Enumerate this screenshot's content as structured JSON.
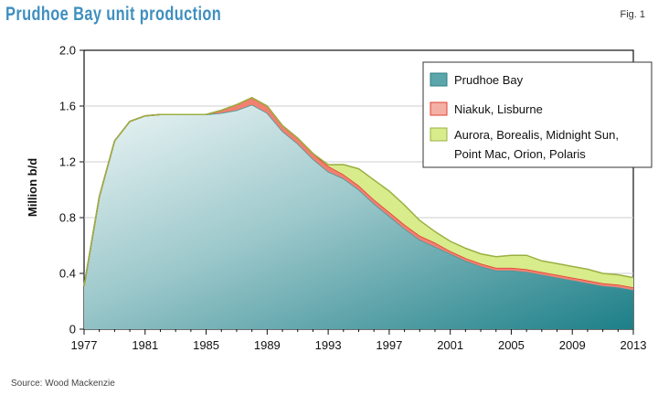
{
  "header": {
    "title": "Prudhoe Bay unit production",
    "fig": "Fig. 1"
  },
  "footer": {
    "source": "Source: Wood Mackenzie"
  },
  "chart_data": {
    "type": "area",
    "stacked": true,
    "title": "Prudhoe Bay unit production",
    "xlabel": "",
    "ylabel": "Million b/d",
    "xlim": [
      1977,
      2013
    ],
    "ylim": [
      0,
      2.0
    ],
    "x_ticks": [
      1977,
      1981,
      1985,
      1989,
      1993,
      1997,
      2001,
      2005,
      2009,
      2013
    ],
    "y_ticks": [
      {
        "value": 0,
        "label": "0"
      },
      {
        "value": 0.4,
        "label": "0.4"
      },
      {
        "value": 0.8,
        "label": "0.8"
      },
      {
        "value": 1.2,
        "label": "1.2"
      },
      {
        "value": 1.6,
        "label": "1.6"
      },
      {
        "value": 2.0,
        "label": "2.0"
      }
    ],
    "grid": "horizontal",
    "legend_position": "top-right",
    "x": [
      1977,
      1978,
      1979,
      1980,
      1981,
      1982,
      1983,
      1984,
      1985,
      1986,
      1987,
      1988,
      1989,
      1990,
      1991,
      1992,
      1993,
      1994,
      1995,
      1996,
      1997,
      1998,
      1999,
      2000,
      2001,
      2002,
      2003,
      2004,
      2005,
      2006,
      2007,
      2008,
      2009,
      2010,
      2011,
      2012,
      2013
    ],
    "series": [
      {
        "name": "Prudhoe Bay",
        "color": "#3f9097",
        "values": [
          0.31,
          0.95,
          1.35,
          1.49,
          1.53,
          1.54,
          1.54,
          1.54,
          1.54,
          1.55,
          1.57,
          1.61,
          1.55,
          1.42,
          1.33,
          1.22,
          1.13,
          1.08,
          1.0,
          0.9,
          0.81,
          0.72,
          0.64,
          0.59,
          0.54,
          0.49,
          0.45,
          0.42,
          0.42,
          0.41,
          0.39,
          0.37,
          0.35,
          0.33,
          0.31,
          0.3,
          0.28
        ]
      },
      {
        "name": "Niakuk, Lisburne",
        "color": "#f08070",
        "values": [
          0,
          0,
          0,
          0,
          0,
          0,
          0,
          0,
          0,
          0.02,
          0.04,
          0.05,
          0.05,
          0.04,
          0.04,
          0.04,
          0.04,
          0.03,
          0.03,
          0.03,
          0.03,
          0.03,
          0.03,
          0.03,
          0.02,
          0.02,
          0.02,
          0.02,
          0.02,
          0.02,
          0.02,
          0.02,
          0.02,
          0.02,
          0.02,
          0.02,
          0.02
        ]
      },
      {
        "name": "Aurora, Borealis, Midnight Sun, Point Mac, Orion, Polaris",
        "color": "#d8ec8c",
        "values": [
          0,
          0,
          0,
          0,
          0,
          0,
          0,
          0,
          0,
          0,
          0,
          0,
          0,
          0,
          0,
          0,
          0.01,
          0.07,
          0.12,
          0.14,
          0.15,
          0.14,
          0.11,
          0.08,
          0.07,
          0.07,
          0.07,
          0.08,
          0.09,
          0.1,
          0.08,
          0.08,
          0.08,
          0.08,
          0.07,
          0.07,
          0.07
        ]
      }
    ]
  }
}
